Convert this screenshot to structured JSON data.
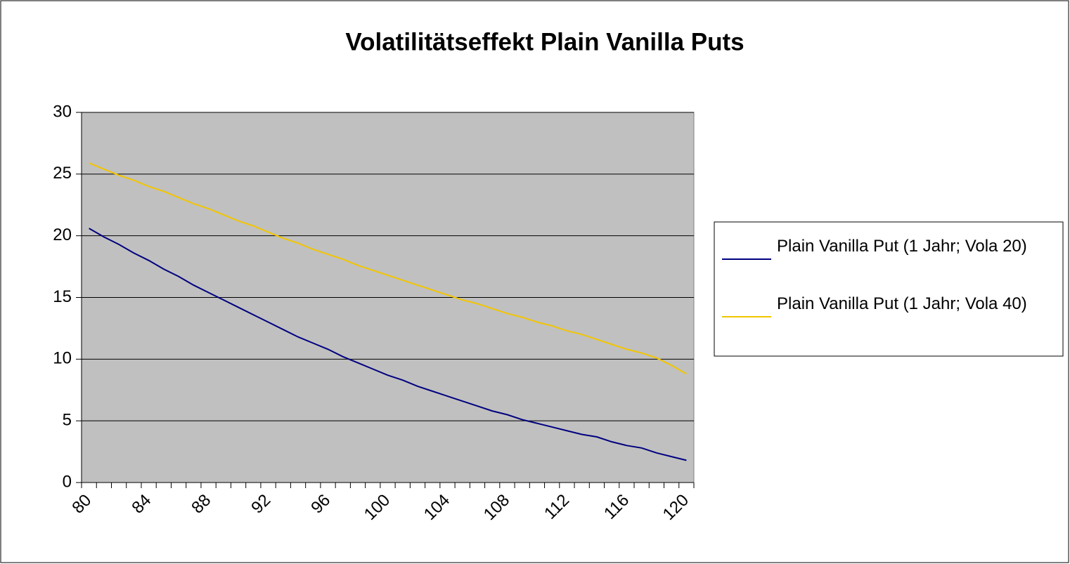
{
  "chart_data": {
    "type": "line",
    "title": "Volatilitätseffekt Plain Vanilla Puts",
    "categories": [
      80,
      null,
      null,
      null,
      84,
      null,
      null,
      null,
      88,
      null,
      null,
      null,
      92,
      null,
      null,
      null,
      96,
      null,
      null,
      null,
      100,
      null,
      null,
      null,
      104,
      null,
      null,
      null,
      108,
      null,
      null,
      null,
      112,
      null,
      null,
      null,
      116,
      null,
      null,
      null,
      120
    ],
    "series": [
      {
        "name": "Plain Vanilla Put (1 Jahr; Vola 20)",
        "color": "#000080",
        "values": [
          20.6,
          19.9,
          19.3,
          18.6,
          18.0,
          17.3,
          16.7,
          16.0,
          15.4,
          14.8,
          14.2,
          13.6,
          13.0,
          12.4,
          11.8,
          11.3,
          10.8,
          10.2,
          9.7,
          9.2,
          8.7,
          8.3,
          7.8,
          7.4,
          7.0,
          6.6,
          6.2,
          5.8,
          5.5,
          5.1,
          4.8,
          4.5,
          4.2,
          3.9,
          3.7,
          3.3,
          3.0,
          2.8,
          2.4,
          2.1,
          1.8
        ]
      },
      {
        "name": "Plain Vanilla Put (1 Jahr; Vola 40)",
        "color": "#f2c500",
        "values": [
          25.9,
          25.4,
          24.9,
          24.5,
          24.0,
          23.6,
          23.1,
          22.6,
          22.2,
          21.7,
          21.2,
          20.8,
          20.3,
          19.8,
          19.4,
          18.9,
          18.5,
          18.1,
          17.6,
          17.2,
          16.8,
          16.4,
          16.0,
          15.6,
          15.2,
          14.8,
          14.5,
          14.1,
          13.7,
          13.4,
          13.0,
          12.7,
          12.3,
          12.0,
          11.6,
          11.2,
          10.8,
          10.5,
          10.1,
          9.5,
          8.8
        ]
      }
    ],
    "ylim": [
      0,
      30
    ],
    "yticks": [
      0,
      5,
      10,
      15,
      20,
      25,
      30
    ],
    "grid": true,
    "legend": "right"
  }
}
